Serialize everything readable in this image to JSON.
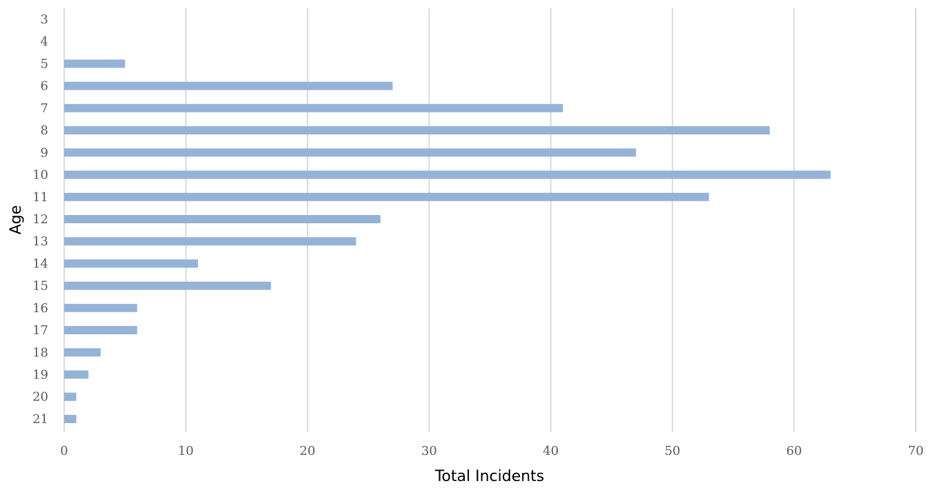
{
  "chart_data": {
    "type": "bar",
    "orientation": "horizontal",
    "xlabel": "Total Incidents",
    "ylabel": "Age",
    "xlim": [
      0,
      70
    ],
    "x_ticks": [
      "0",
      "10",
      "20",
      "30",
      "40",
      "50",
      "60",
      "70"
    ],
    "categories": [
      "3",
      "4",
      "5",
      "6",
      "7",
      "8",
      "9",
      "10",
      "11",
      "12",
      "13",
      "14",
      "15",
      "16",
      "17",
      "18",
      "19",
      "20",
      "21"
    ],
    "values": [
      0,
      0,
      5,
      27,
      41,
      58,
      47,
      63,
      53,
      26,
      24,
      11,
      17,
      6,
      6,
      3,
      2,
      1,
      1
    ],
    "grid": "vertical",
    "legend": "none",
    "bar_color": "#95b3d7",
    "grid_color": "#d9d9d9"
  }
}
